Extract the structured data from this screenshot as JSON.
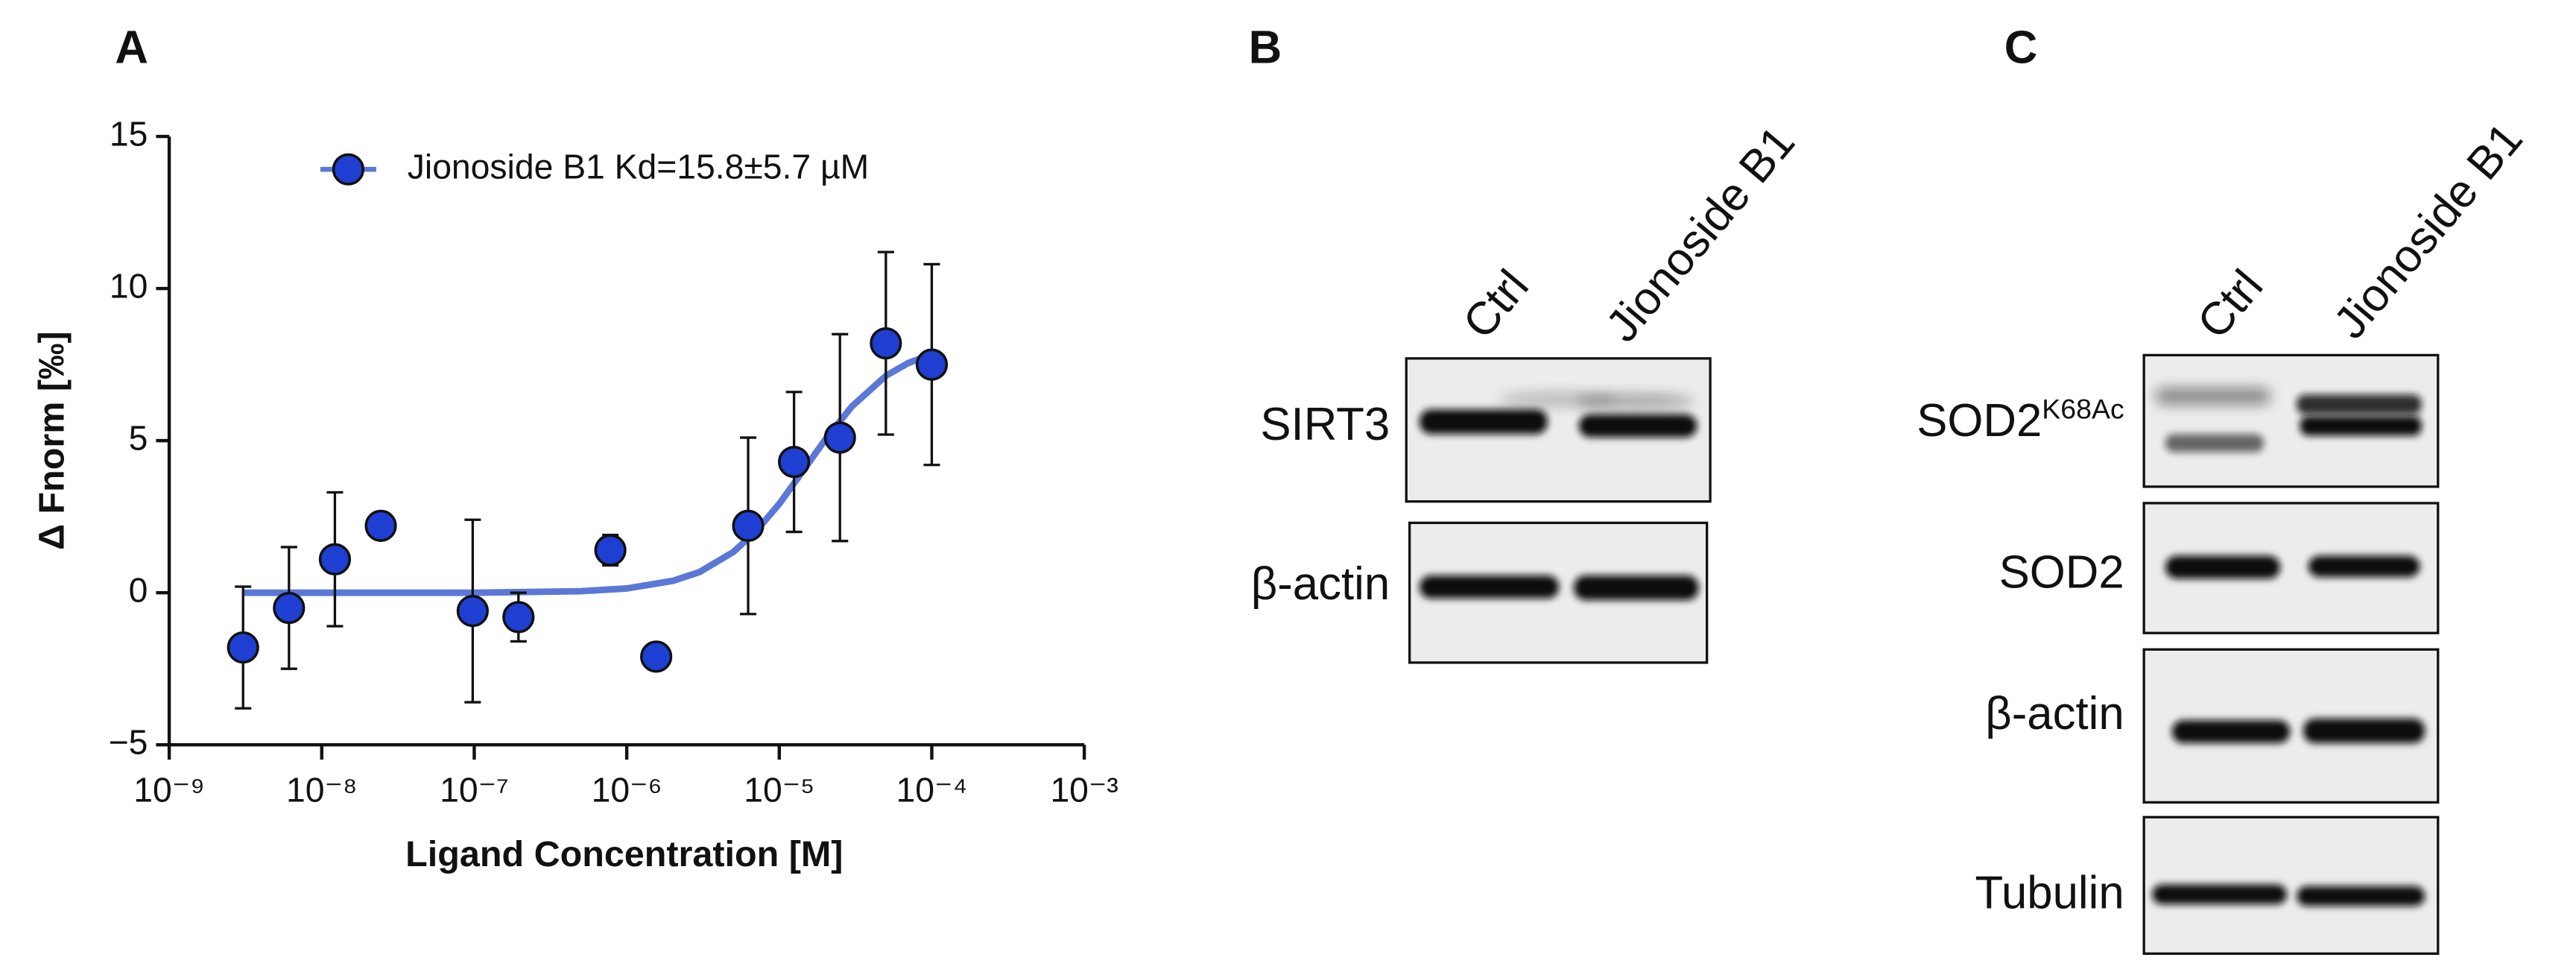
{
  "chart_data": {
    "type": "scatter",
    "panel_label": "A",
    "x_label": "Ligand Concentration [M]",
    "y_label": "Δ Fnorm [‰]",
    "xscale": "log",
    "xlim": [
      1e-09,
      0.001
    ],
    "xticks": [
      {
        "value": 1e-09,
        "label": "10⁻⁹"
      },
      {
        "value": 1e-08,
        "label": "10⁻⁸"
      },
      {
        "value": 1e-07,
        "label": "10⁻⁷"
      },
      {
        "value": 1e-06,
        "label": "10⁻⁶"
      },
      {
        "value": 1e-05,
        "label": "10⁻⁵"
      },
      {
        "value": 0.0001,
        "label": "10⁻⁴"
      },
      {
        "value": 0.001,
        "label": "10⁻³"
      }
    ],
    "ylim": [
      -5,
      15
    ],
    "yticks": [
      {
        "value": -5,
        "label": "−5"
      },
      0,
      5,
      10,
      15
    ],
    "legend": "upper-left",
    "series": [
      {
        "name": "Jionoside B1 Kd=15.8±5.7 µM",
        "color": "#1f3fd2",
        "x": [
          3.05e-09,
          6.1e-09,
          1.22e-08,
          2.44e-08,
          9.77e-08,
          1.95e-07,
          7.81e-07,
          1.56e-06,
          6.25e-06,
          1.25e-05,
          2.5e-05,
          5e-05,
          0.0001
        ],
        "values": [
          -1.8,
          -0.5,
          1.1,
          2.2,
          -0.6,
          -0.8,
          1.4,
          -2.1,
          2.2,
          4.3,
          5.1,
          8.2,
          7.5
        ],
        "errors": [
          2.0,
          2.0,
          2.2,
          0.2,
          3.0,
          0.8,
          0.5,
          0.2,
          2.9,
          2.3,
          3.4,
          3.0,
          3.3
        ]
      }
    ],
    "fit": {
      "color": "#5b78d8",
      "x": [
        3.05e-09,
        1e-07,
        5e-07,
        1e-06,
        2e-06,
        3e-06,
        5e-06,
        7e-06,
        1e-05,
        1.4e-05,
        2e-05,
        3e-05,
        5e-05,
        7e-05,
        0.0001
      ],
      "values": [
        0,
        0,
        0.05,
        0.14,
        0.39,
        0.68,
        1.34,
        2.01,
        2.92,
        3.94,
        5.03,
        6.13,
        7.13,
        7.55,
        7.84
      ]
    }
  },
  "blots": [
    {
      "panel_label": "B",
      "lanes": [
        "Ctrl",
        "Jionoside B1"
      ],
      "rows": [
        {
          "label": "SIRT3"
        },
        {
          "label": "β-actin"
        }
      ]
    },
    {
      "panel_label": "C",
      "lanes": [
        "Ctrl",
        "Jionoside B1"
      ],
      "rows": [
        {
          "label": "SOD2",
          "superscript": "K68Ac"
        },
        {
          "label": "SOD2"
        },
        {
          "label": "β-actin"
        },
        {
          "label": "Tubulin"
        }
      ]
    }
  ]
}
